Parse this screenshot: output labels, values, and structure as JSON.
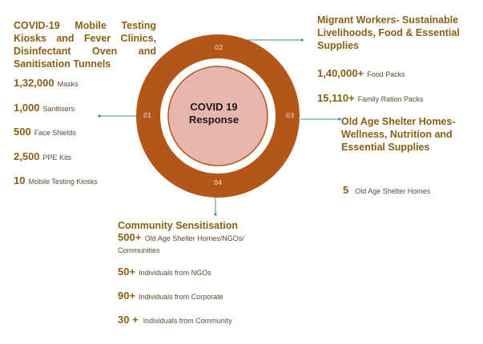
{
  "center": {
    "line1": "COVID 19",
    "line2": "Response"
  },
  "ring_labels": [
    "01",
    "02",
    "03",
    "04"
  ],
  "colors": {
    "ring": "#b4561a",
    "inner": "#e9b6ae",
    "heading": "#8a5f14",
    "connector": "#3f8f8a"
  },
  "left": {
    "heading": "COVID-19 Mobile Testing Kiosks and Fever Clinics, Disinfectant Oven and Sanitisation Tunnels",
    "items": [
      {
        "num": "1,32,000",
        "label": "Masks"
      },
      {
        "num": "1,000",
        "label": "Sanitisers"
      },
      {
        "num": "500",
        "label": "Face Shields"
      },
      {
        "num": "2,500",
        "label": "PPE Kits"
      },
      {
        "num": "10",
        "label": "Mobile Testing Kiosks"
      }
    ]
  },
  "top_right": {
    "heading": "Migrant Workers- Sustainable Livelihoods, Food & Essential Supplies",
    "items": [
      {
        "num": "1,40,000+",
        "label": "Food Packs"
      },
      {
        "num": "15,110+",
        "label": "Family Ration Packs"
      }
    ]
  },
  "right": {
    "heading": "Old Age Shelter Homes-Wellness, Nutrition and Essential Supplies",
    "items": [
      {
        "num": "5",
        "label": "Old Age Shelter Homes"
      }
    ]
  },
  "bottom": {
    "heading": "Community Sensitisation",
    "items": [
      {
        "num": "500+",
        "label": "Old Age Shelter Homes/NGOs/ Communities"
      },
      {
        "num": "50+",
        "label": "Individuals from NGOs"
      },
      {
        "num": "90+",
        "label": "Individuals from Corporate"
      },
      {
        "num": "30 +",
        "label": "Individuals from Community"
      }
    ]
  }
}
